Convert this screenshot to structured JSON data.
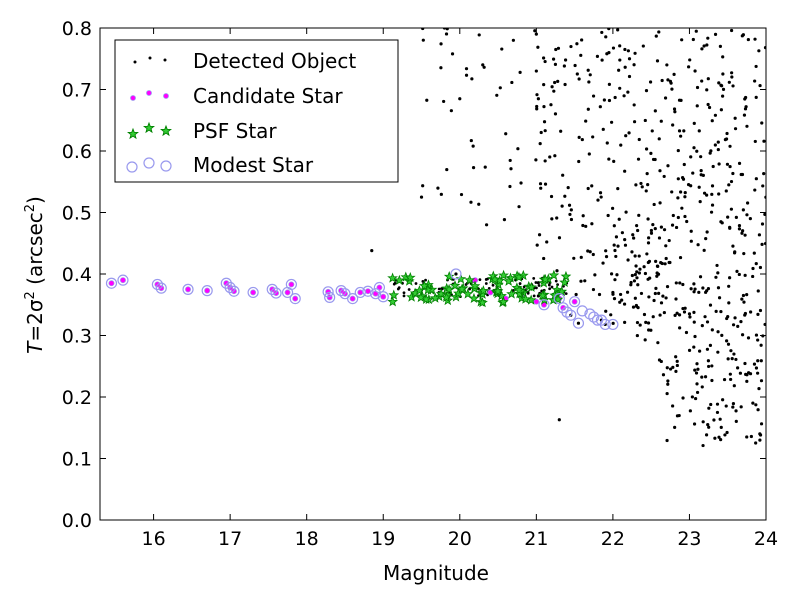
{
  "chart_data": {
    "type": "scatter",
    "xlabel": "Magnitude",
    "ylabel": {
      "T": "T",
      "eq": "=2σ",
      "exp": "2",
      "unit": " (arcsec",
      "unit_exp": "2",
      "close": ")"
    },
    "xlim": [
      15.3,
      24
    ],
    "ylim": [
      0.0,
      0.8
    ],
    "x_ticks": [
      16,
      17,
      18,
      19,
      20,
      21,
      22,
      23,
      24
    ],
    "y_ticks": [
      0.0,
      0.1,
      0.2,
      0.3,
      0.4,
      0.5,
      0.6,
      0.7,
      0.8
    ],
    "x_tick_labels": [
      "16",
      "17",
      "18",
      "19",
      "20",
      "21",
      "22",
      "23",
      "24"
    ],
    "y_tick_labels": [
      "0.0",
      "0.1",
      "0.2",
      "0.3",
      "0.4",
      "0.5",
      "0.6",
      "0.7",
      "0.8"
    ],
    "grid": false,
    "legend_position": "top-left",
    "legend": [
      "Detected Object",
      "Candidate Star",
      "PSF Star",
      "Modest Star"
    ],
    "series": [
      {
        "name": "Detected Object",
        "marker": "dot",
        "color": "#000000",
        "generated": true,
        "points": [
          [
            15.45,
            0.385
          ],
          [
            15.6,
            0.39
          ],
          [
            16.05,
            0.383
          ],
          [
            16.1,
            0.377
          ],
          [
            16.45,
            0.375
          ],
          [
            16.7,
            0.373
          ],
          [
            16.95,
            0.385
          ],
          [
            17.0,
            0.378
          ],
          [
            17.05,
            0.372
          ],
          [
            17.3,
            0.37
          ],
          [
            17.55,
            0.375
          ],
          [
            17.6,
            0.369
          ],
          [
            17.75,
            0.37
          ],
          [
            17.8,
            0.383
          ],
          [
            17.85,
            0.36
          ],
          [
            18.28,
            0.371
          ],
          [
            18.3,
            0.362
          ],
          [
            18.45,
            0.373
          ],
          [
            18.6,
            0.36
          ],
          [
            18.8,
            0.372
          ],
          [
            18.95,
            0.378
          ],
          [
            19.0,
            0.363
          ],
          [
            18.85,
            0.438
          ],
          [
            19.95,
            0.4
          ],
          [
            21.3,
            0.163
          ],
          [
            21.9,
            0.318
          ],
          [
            22.0,
            0.37
          ],
          [
            21.85,
            0.325
          ],
          [
            21.55,
            0.32
          ],
          [
            21.45,
            0.333
          ],
          [
            20.6,
            0.628
          ],
          [
            20.8,
            0.548
          ],
          [
            20.0,
            0.685
          ],
          [
            20.3,
            0.74
          ],
          [
            19.8,
            0.8
          ],
          [
            21.0,
            0.79
          ],
          [
            21.0,
            0.73
          ],
          [
            20.7,
            0.78
          ],
          [
            19.5,
            0.525
          ],
          [
            20.35,
            0.48
          ]
        ]
      },
      {
        "name": "Candidate Star",
        "marker": "circle",
        "color": "#ff00ff",
        "points": [
          [
            15.45,
            0.385
          ],
          [
            15.6,
            0.39
          ],
          [
            16.05,
            0.383
          ],
          [
            16.1,
            0.377
          ],
          [
            16.45,
            0.375
          ],
          [
            16.7,
            0.373
          ],
          [
            16.95,
            0.385
          ],
          [
            17.0,
            0.378
          ],
          [
            17.05,
            0.372
          ],
          [
            17.3,
            0.37
          ],
          [
            17.55,
            0.375
          ],
          [
            17.6,
            0.369
          ],
          [
            17.75,
            0.37
          ],
          [
            17.8,
            0.383
          ],
          [
            17.85,
            0.36
          ],
          [
            18.28,
            0.371
          ],
          [
            18.3,
            0.362
          ],
          [
            18.45,
            0.373
          ],
          [
            18.5,
            0.368
          ],
          [
            18.6,
            0.36
          ],
          [
            18.7,
            0.37
          ],
          [
            18.8,
            0.372
          ],
          [
            18.9,
            0.368
          ],
          [
            18.95,
            0.378
          ],
          [
            19.0,
            0.363
          ],
          [
            20.2,
            0.39
          ],
          [
            20.4,
            0.37
          ],
          [
            20.6,
            0.36
          ],
          [
            20.8,
            0.365
          ],
          [
            21.0,
            0.355
          ],
          [
            21.1,
            0.35
          ],
          [
            21.3,
            0.36
          ],
          [
            21.35,
            0.345
          ],
          [
            21.5,
            0.355
          ]
        ]
      },
      {
        "name": "PSF Star",
        "marker": "star",
        "color": "#008000",
        "generated": true,
        "x_range": [
          19.1,
          21.4
        ],
        "y_range": [
          0.35,
          0.4
        ],
        "count": 90
      },
      {
        "name": "Modest Star",
        "marker": "ring",
        "color": "#9999ee",
        "points": [
          [
            15.45,
            0.385
          ],
          [
            15.6,
            0.39
          ],
          [
            16.05,
            0.383
          ],
          [
            16.1,
            0.377
          ],
          [
            16.45,
            0.375
          ],
          [
            16.7,
            0.373
          ],
          [
            16.95,
            0.385
          ],
          [
            17.0,
            0.378
          ],
          [
            17.05,
            0.372
          ],
          [
            17.3,
            0.37
          ],
          [
            17.55,
            0.375
          ],
          [
            17.6,
            0.369
          ],
          [
            17.75,
            0.37
          ],
          [
            17.8,
            0.383
          ],
          [
            17.85,
            0.36
          ],
          [
            18.28,
            0.371
          ],
          [
            18.3,
            0.362
          ],
          [
            18.45,
            0.373
          ],
          [
            18.5,
            0.368
          ],
          [
            18.6,
            0.36
          ],
          [
            18.7,
            0.37
          ],
          [
            18.8,
            0.372
          ],
          [
            18.9,
            0.368
          ],
          [
            18.95,
            0.378
          ],
          [
            19.0,
            0.363
          ],
          [
            19.95,
            0.4
          ],
          [
            21.1,
            0.35
          ],
          [
            21.3,
            0.36
          ],
          [
            21.35,
            0.345
          ],
          [
            21.45,
            0.333
          ],
          [
            21.55,
            0.32
          ],
          [
            21.6,
            0.34
          ],
          [
            21.7,
            0.335
          ],
          [
            21.75,
            0.33
          ],
          [
            21.8,
            0.325
          ],
          [
            21.85,
            0.325
          ],
          [
            21.9,
            0.318
          ],
          [
            22.0,
            0.318
          ],
          [
            21.5,
            0.355
          ],
          [
            21.4,
            0.338
          ]
        ]
      }
    ]
  }
}
